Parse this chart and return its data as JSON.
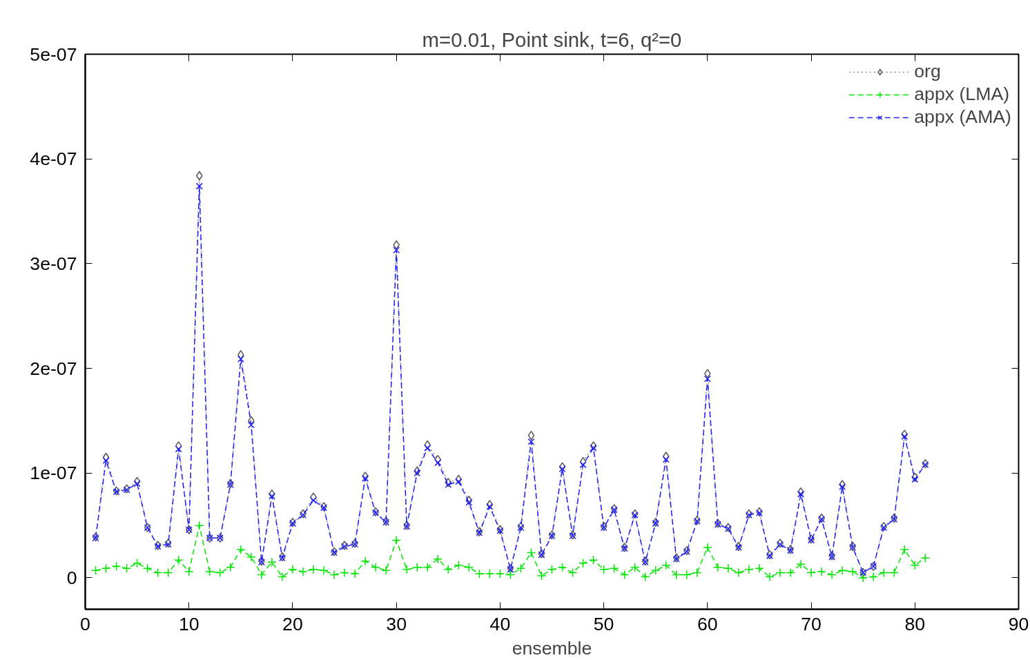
{
  "chart_data": {
    "type": "line",
    "title": "m=0.01, Point sink, t=6, q²=0",
    "xlabel": "ensemble",
    "x": [
      1,
      2,
      3,
      4,
      5,
      6,
      7,
      8,
      9,
      10,
      11,
      12,
      13,
      14,
      15,
      16,
      17,
      18,
      19,
      20,
      21,
      22,
      23,
      24,
      25,
      26,
      27,
      28,
      29,
      30,
      31,
      32,
      33,
      34,
      35,
      36,
      37,
      38,
      39,
      40,
      41,
      42,
      43,
      44,
      45,
      46,
      47,
      48,
      49,
      50,
      51,
      52,
      53,
      54,
      55,
      56,
      57,
      58,
      59,
      60,
      61,
      62,
      63,
      64,
      65,
      66,
      67,
      68,
      69,
      70,
      71,
      72,
      73,
      74,
      75,
      76,
      77,
      78,
      79,
      80,
      81
    ],
    "series": [
      {
        "name": "org",
        "color": "#8c8c8c",
        "marker": "diamond",
        "line_style": "dotted",
        "values": [
          3.9e-08,
          1.15e-07,
          8.3e-08,
          8.5e-08,
          9.2e-08,
          4.8e-08,
          3.1e-08,
          3.3e-08,
          1.26e-07,
          4.6e-08,
          3.84e-07,
          3.8e-08,
          3.8e-08,
          9e-08,
          2.13e-07,
          1.5e-07,
          1.6e-08,
          8e-08,
          2e-08,
          5.3e-08,
          6.1e-08,
          7.7e-08,
          6.8e-08,
          2.5e-08,
          3.1e-08,
          3.3e-08,
          9.7e-08,
          6.3e-08,
          5.4e-08,
          3.18e-07,
          5e-08,
          1.02e-07,
          1.27e-07,
          1.13e-07,
          9.1e-08,
          9.4e-08,
          7.4e-08,
          4.4e-08,
          7e-08,
          4.6e-08,
          9e-09,
          4.9e-08,
          1.36e-07,
          2.3e-08,
          4.1e-08,
          1.06e-07,
          4.1e-08,
          1.11e-07,
          1.26e-07,
          4.9e-08,
          6.6e-08,
          2.9e-08,
          6.1e-08,
          1.6e-08,
          5.3e-08,
          1.16e-07,
          1.9e-08,
          2.6e-08,
          5.5e-08,
          1.95e-07,
          5.2e-08,
          4.8e-08,
          3e-08,
          6.1e-08,
          6.3e-08,
          2.2e-08,
          3.3e-08,
          2.7e-08,
          8.2e-08,
          3.7e-08,
          5.7e-08,
          2.1e-08,
          8.9e-08,
          3e-08,
          5e-09,
          1.1e-08,
          4.9e-08,
          5.7e-08,
          1.37e-07,
          9.6e-08,
          1.09e-07
        ]
      },
      {
        "name": "appx (LMA)",
        "color": "#00e600",
        "marker": "cross",
        "line_style": "dashed",
        "values": [
          7e-09,
          9e-09,
          1.1e-08,
          9e-09,
          1.4e-08,
          9e-09,
          5e-09,
          5e-09,
          1.7e-08,
          6e-09,
          5e-08,
          6e-09,
          5e-09,
          1e-08,
          2.7e-08,
          2e-08,
          3e-09,
          1.5e-08,
          1e-09,
          8e-09,
          6e-09,
          8e-09,
          7e-09,
          3e-09,
          5e-09,
          4e-09,
          1.6e-08,
          1e-08,
          7e-09,
          3.6e-08,
          8e-09,
          1e-08,
          1e-08,
          1.8e-08,
          8e-09,
          1.2e-08,
          1e-08,
          4e-09,
          4e-09,
          4e-09,
          3e-09,
          9e-09,
          2.4e-08,
          2e-09,
          8e-09,
          1e-08,
          5e-09,
          1.4e-08,
          1.7e-08,
          8e-09,
          9e-09,
          3e-09,
          1e-08,
          1e-09,
          7e-09,
          1.2e-08,
          3e-09,
          3e-09,
          5e-09,
          2.9e-08,
          1e-08,
          9e-09,
          5e-09,
          8e-09,
          9e-09,
          1e-09,
          5e-09,
          5e-09,
          1.3e-08,
          5e-09,
          6e-09,
          3e-09,
          7e-09,
          6e-09,
          0,
          1e-09,
          5e-09,
          5e-09,
          2.7e-08,
          1.2e-08,
          1.9e-08
        ]
      },
      {
        "name": "appx (AMA)",
        "color": "#2020ff",
        "marker": "x",
        "line_style": "dashed",
        "values": [
          3.8e-08,
          1.12e-07,
          8.2e-08,
          8.4e-08,
          9e-08,
          4.8e-08,
          3e-08,
          3.2e-08,
          1.23e-07,
          4.6e-08,
          3.74e-07,
          3.8e-08,
          3.8e-08,
          8.9e-08,
          2.09e-07,
          1.46e-07,
          1.5e-08,
          7.8e-08,
          1.9e-08,
          5.2e-08,
          6e-08,
          7.4e-08,
          6.7e-08,
          2.4e-08,
          3e-08,
          3.2e-08,
          9.5e-08,
          6.2e-08,
          5.3e-08,
          3.13e-07,
          4.9e-08,
          1e-07,
          1.24e-07,
          1.1e-07,
          8.9e-08,
          9.2e-08,
          7.2e-08,
          4.3e-08,
          6.8e-08,
          4.5e-08,
          8e-09,
          4.8e-08,
          1.3e-07,
          2.2e-08,
          4e-08,
          1.04e-07,
          4e-08,
          1.08e-07,
          1.24e-07,
          4.8e-08,
          6.5e-08,
          2.8e-08,
          6e-08,
          1.5e-08,
          5.2e-08,
          1.13e-07,
          1.8e-08,
          2.5e-08,
          5.4e-08,
          1.9e-07,
          5.1e-08,
          4.7e-08,
          2.9e-08,
          6e-08,
          6.2e-08,
          2.1e-08,
          3.2e-08,
          2.6e-08,
          8e-08,
          3.6e-08,
          5.6e-08,
          2e-08,
          8.7e-08,
          2.9e-08,
          5e-09,
          1.1e-08,
          4.8e-08,
          5.6e-08,
          1.35e-07,
          9.4e-08,
          1.08e-07
        ]
      }
    ],
    "xlim": [
      0,
      90
    ],
    "xticks": [
      0,
      10,
      20,
      30,
      40,
      50,
      60,
      70,
      80,
      90
    ],
    "ylim": [
      -3e-08,
      5e-07
    ],
    "yticks": [
      {
        "value": 0,
        "label": "0"
      },
      {
        "value": 1e-07,
        "label": "1e-07"
      },
      {
        "value": 2e-07,
        "label": "2e-07"
      },
      {
        "value": 3e-07,
        "label": "3e-07"
      },
      {
        "value": 4e-07,
        "label": "4e-07"
      },
      {
        "value": 5e-07,
        "label": "5e-07"
      }
    ],
    "grid": false,
    "legend": "top right"
  }
}
